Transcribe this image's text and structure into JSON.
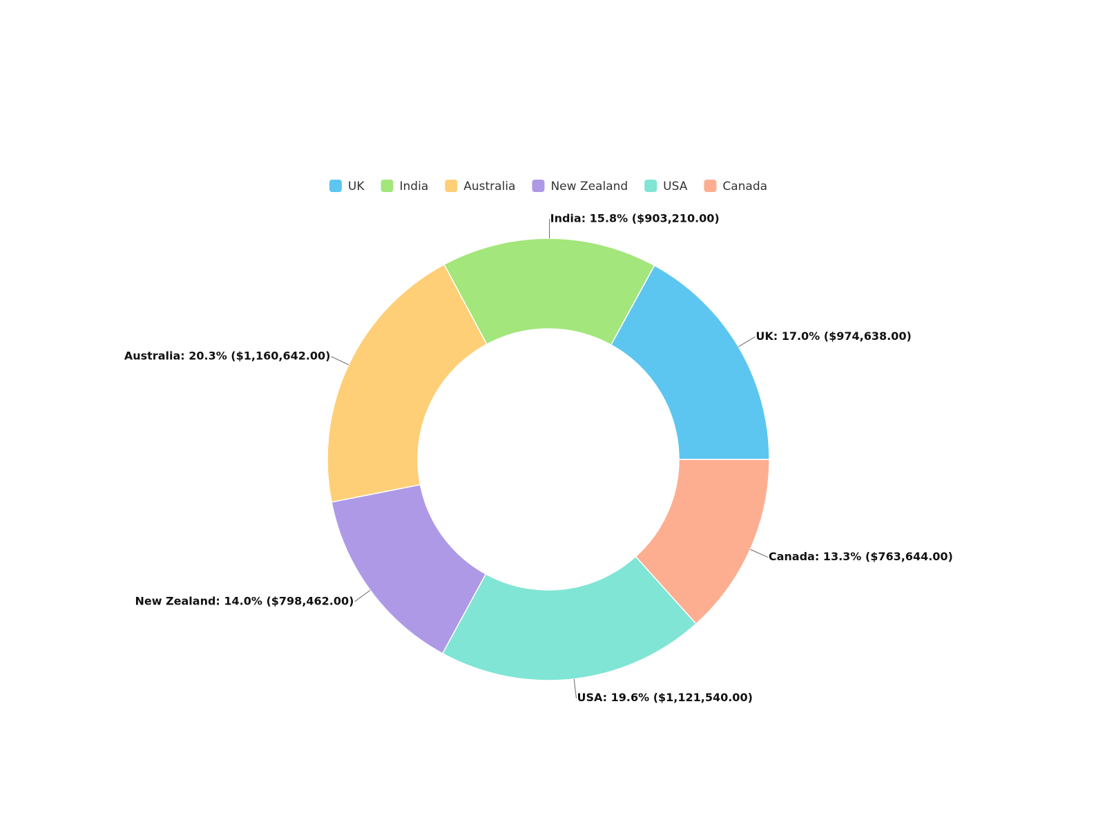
{
  "chart_data": {
    "type": "donut",
    "categories": [
      "UK",
      "India",
      "Australia",
      "New Zealand",
      "USA",
      "Canada"
    ],
    "values": [
      974638,
      903210,
      1160642,
      798462,
      1121540,
      763644
    ],
    "value_labels": [
      "UK: 17.0% ($974,638.00)",
      "India: 15.8% ($903,210.00)",
      "Australia: 20.3% ($1,160,642.00)",
      "New Zealand: 14.0% ($798,462.00)",
      "USA: 19.6% ($1,121,540.00)",
      "Canada: 13.3% ($763,644.00)"
    ],
    "colors": [
      "#5cc6f0",
      "#a3e67b",
      "#fecf77",
      "#ae99e6",
      "#80e5d4",
      "#fdae91"
    ],
    "legend": "top"
  }
}
